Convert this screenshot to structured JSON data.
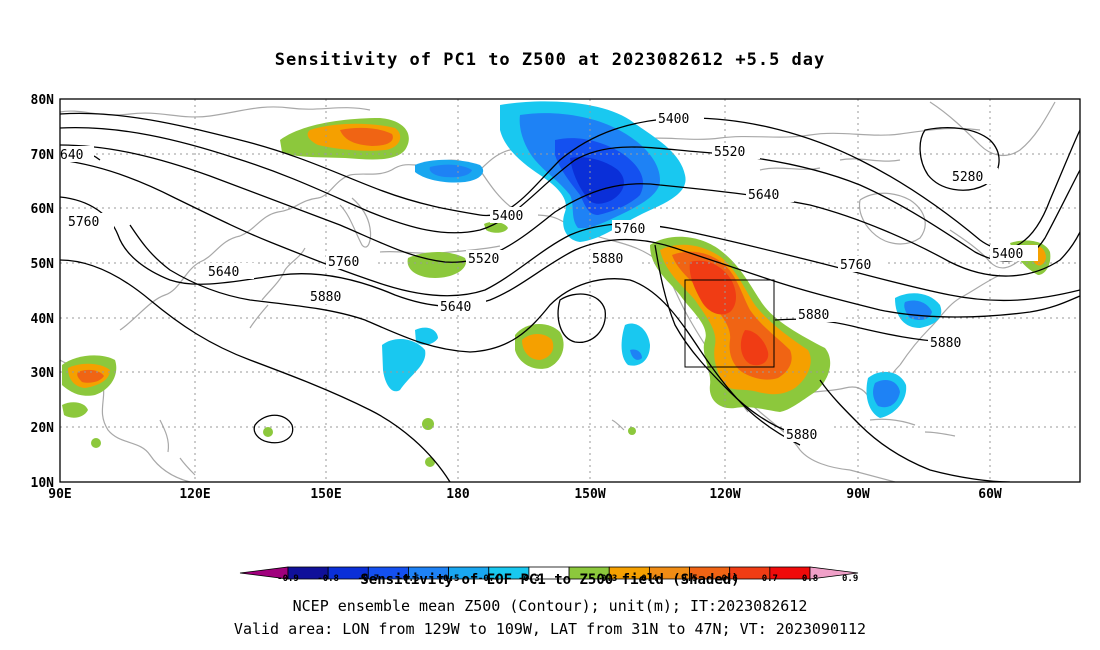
{
  "title": "Sensitivity of PC1 to Z500 at 2023082612 +5.5 day",
  "lat_labels": [
    "80N",
    "70N",
    "60N",
    "50N",
    "40N",
    "30N",
    "20N",
    "10N"
  ],
  "lon_labels": [
    "90E",
    "120E",
    "150E",
    "180",
    "150W",
    "120W",
    "90W",
    "60W"
  ],
  "contour_labels": [
    "5400",
    "5520",
    "5640",
    "5760",
    "5880",
    "5400",
    "5280",
    "5760",
    "5640",
    "5760",
    "5520",
    "5400",
    "5880",
    "5760",
    "5880",
    "5640",
    "5880",
    "5880",
    "5400",
    "640"
  ],
  "colorbar": {
    "labels": [
      "-0.9",
      "-0.8",
      "-0.7",
      "-0.6",
      "-0.5",
      "-0.4",
      "-0.3",
      "0.3",
      "0.4",
      "0.5",
      "0.6",
      "0.7",
      "0.8",
      "0.9"
    ],
    "colors": [
      "#a0007d",
      "#10109a",
      "#0a2fd8",
      "#1450f0",
      "#1e82f5",
      "#19a7f0",
      "#19c8f0",
      "#ffffff",
      "#8cc83c",
      "#f5a000",
      "#f08c14",
      "#f06414",
      "#f03c14",
      "#f00a0a",
      "#f0a0c8"
    ]
  },
  "caption1": "Sensitivity of EOF PC1 to Z500 field (Shaded)",
  "caption2": "NCEP ensemble mean Z500 (Contour); unit(m); IT:2023082612",
  "caption3": "Valid area: LON from 129W to 109W, LAT from 31N to 47N; VT: 2023090112",
  "colors": {
    "coast": "#a8a8a8",
    "grid": "#9a9a9a",
    "contour": "#000000"
  }
}
